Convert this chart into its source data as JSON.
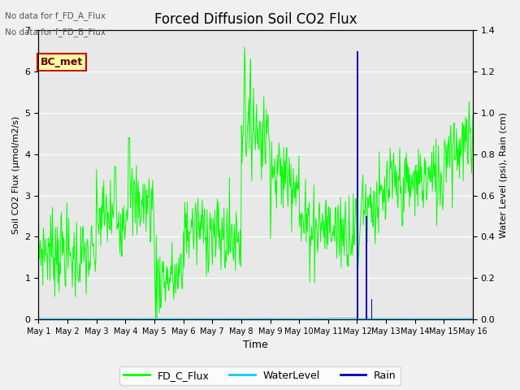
{
  "title": "Forced Diffusion Soil CO2 Flux",
  "xlabel": "Time",
  "ylabel_left": "Soil CO2 Flux (μmol/m2/s)",
  "ylabel_right": "Water Level (psi), Rain (cm)",
  "text_no_data_A": "No data for f_FD_A_Flux",
  "text_no_data_B": "No data for f_FD_B_Flux",
  "annotation_box": "BC_met",
  "ylim_left": [
    0.0,
    7.0
  ],
  "ylim_right": [
    0.0,
    1.4
  ],
  "x_tick_labels": [
    "May 1",
    "May 2",
    "May 3",
    "May 4",
    "May 5",
    "May 6",
    "May 7",
    "May 8",
    "May 9",
    "May 10",
    "May 11",
    "May 12",
    "May 13",
    "May 14",
    "May 15",
    "May 16"
  ],
  "fd_c_color": "#00ff00",
  "water_color": "#00ccff",
  "rain_color": "#0000bb",
  "plot_bg_color": "#e8e8e8",
  "fig_bg_color": "#f0f0f0",
  "grid_color": "#ffffff",
  "n_days": 15,
  "points_per_day": 48
}
